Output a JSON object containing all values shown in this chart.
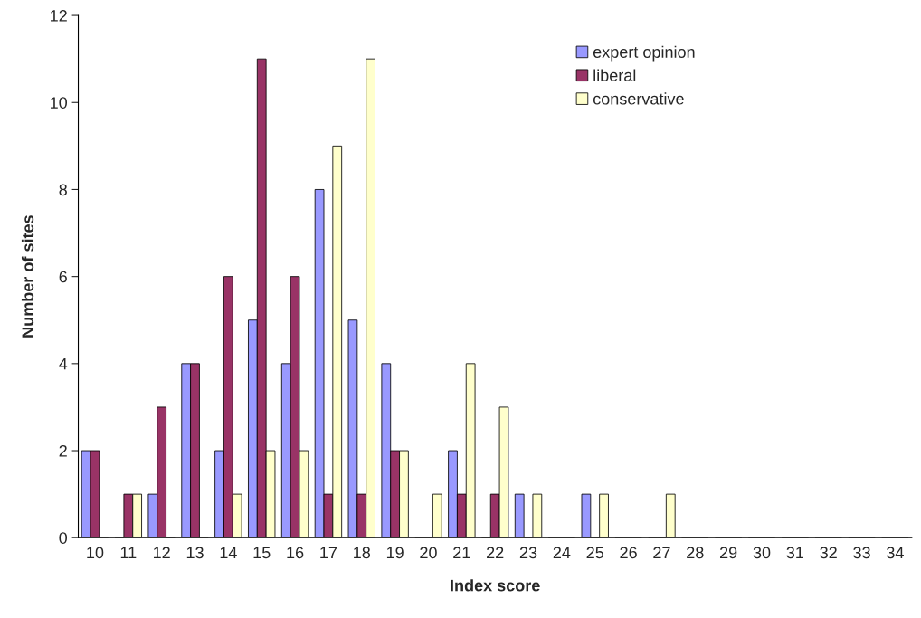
{
  "chart_data": {
    "type": "bar",
    "xlabel": "Index score",
    "ylabel": "Number of sites",
    "categories": [
      "10",
      "11",
      "12",
      "13",
      "14",
      "15",
      "16",
      "17",
      "18",
      "19",
      "20",
      "21",
      "22",
      "23",
      "24",
      "25",
      "26",
      "27",
      "28",
      "29",
      "30",
      "31",
      "32",
      "33",
      "34"
    ],
    "series": [
      {
        "name": "expert opinion",
        "color": "#9999ff",
        "values": [
          2,
          0,
          1,
          4,
          2,
          5,
          4,
          8,
          5,
          4,
          0,
          2,
          0,
          1,
          0,
          1,
          0,
          0,
          0,
          0,
          0,
          0,
          0,
          0,
          0
        ]
      },
      {
        "name": "liberal",
        "color": "#993366",
        "values": [
          2,
          1,
          3,
          4,
          6,
          11,
          6,
          1,
          1,
          2,
          0,
          1,
          1,
          0,
          0,
          0,
          0,
          0,
          0,
          0,
          0,
          0,
          0,
          0,
          0
        ]
      },
      {
        "name": "conservative",
        "color": "#ffffcc",
        "values": [
          0,
          1,
          0,
          0,
          1,
          2,
          2,
          9,
          11,
          2,
          1,
          4,
          3,
          1,
          0,
          1,
          0,
          1,
          0,
          0,
          0,
          0,
          0,
          0,
          0
        ]
      }
    ],
    "ylim": [
      0,
      12
    ],
    "yticks": [
      0,
      2,
      4,
      6,
      8,
      10,
      12
    ],
    "grid": false,
    "legend": "top right"
  }
}
